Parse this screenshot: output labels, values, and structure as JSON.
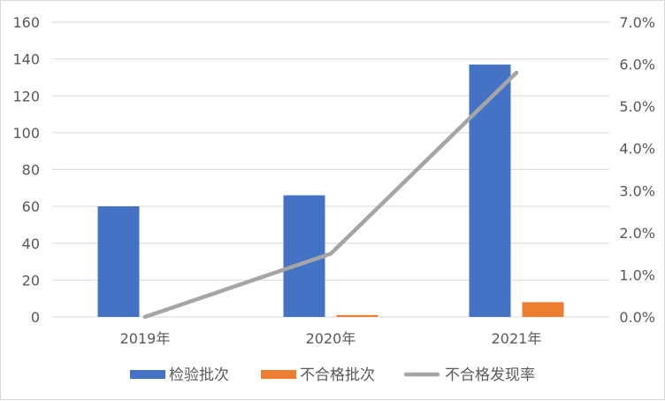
{
  "chart_data": {
    "type": "bar",
    "categories": [
      "2019年",
      "2020年",
      "2021年"
    ],
    "series": [
      {
        "name": "检验批次",
        "kind": "bar",
        "axis": "left",
        "color": "#4472C4",
        "values": [
          60,
          66,
          137
        ]
      },
      {
        "name": "不合格批次",
        "kind": "bar",
        "axis": "left",
        "color": "#ED7D31",
        "values": [
          0,
          1,
          8
        ]
      },
      {
        "name": "不合格发现率",
        "kind": "line",
        "axis": "right",
        "color": "#A5A5A5",
        "values": [
          0.0,
          1.5,
          5.8
        ]
      }
    ],
    "y_left": {
      "min": 0,
      "max": 160,
      "step": 20,
      "tick_labels": [
        "0",
        "20",
        "40",
        "60",
        "80",
        "100",
        "120",
        "140",
        "160"
      ]
    },
    "y_right": {
      "min": 0,
      "max": 7,
      "step": 1,
      "tick_labels": [
        "0.0%",
        "1.0%",
        "2.0%",
        "3.0%",
        "4.0%",
        "5.0%",
        "6.0%",
        "7.0%"
      ]
    },
    "grid": true,
    "legend_position": "bottom"
  }
}
